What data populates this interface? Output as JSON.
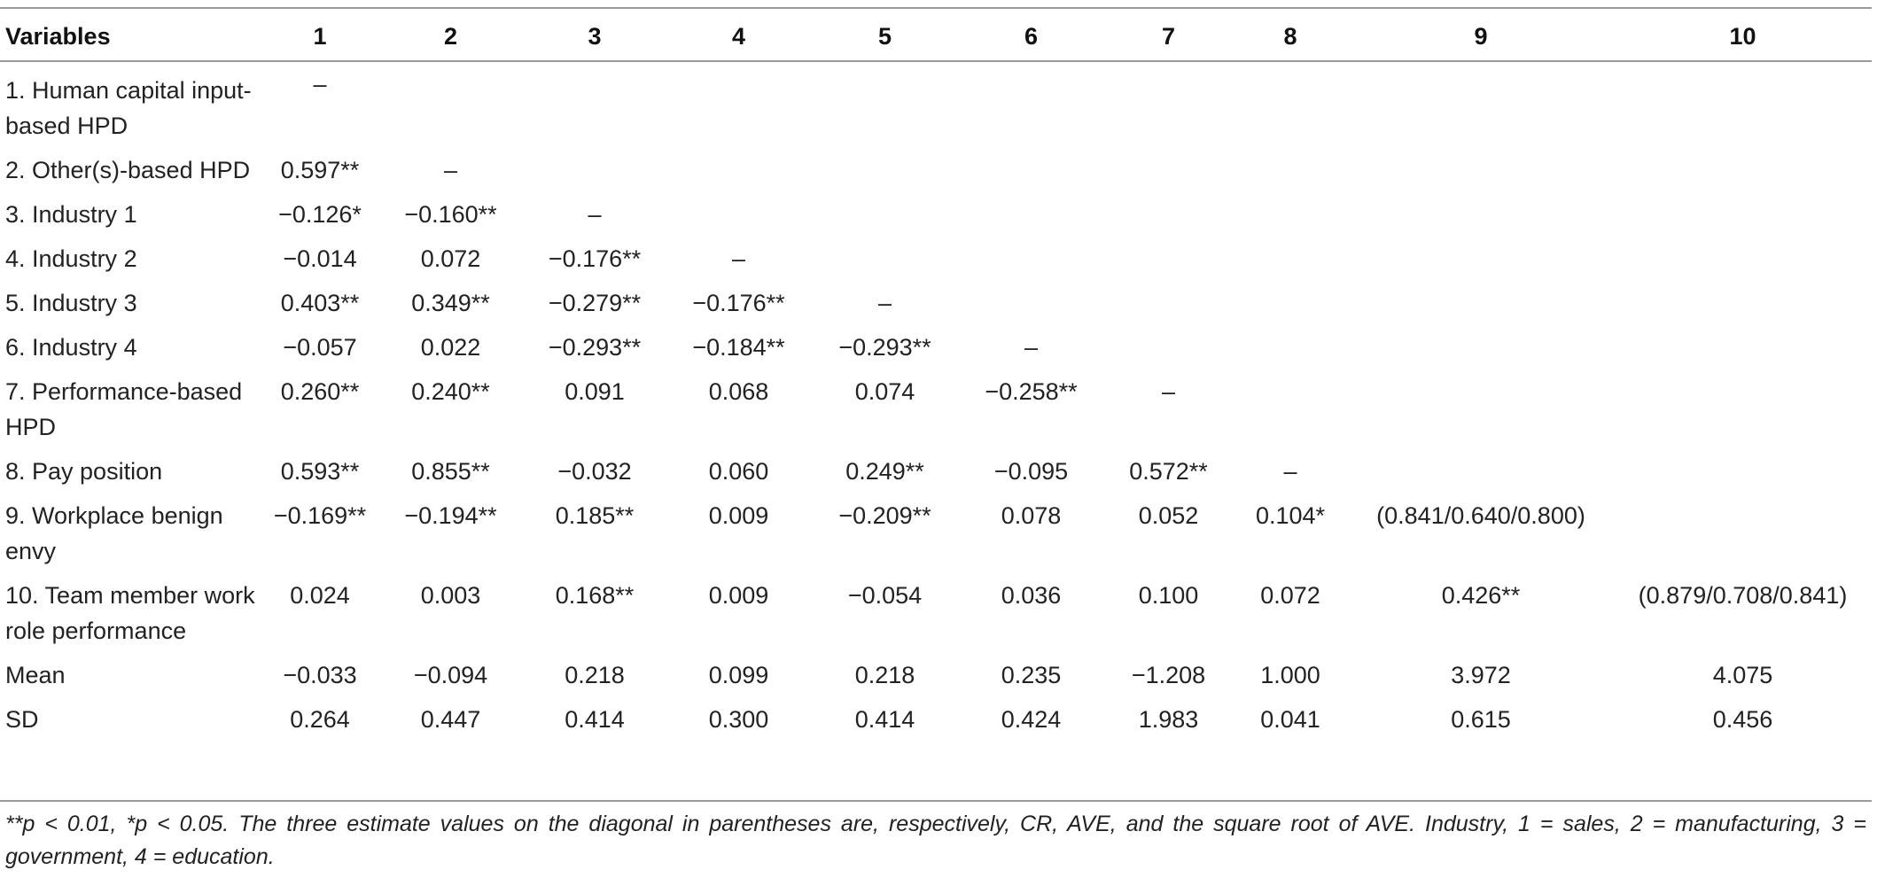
{
  "table": {
    "headers": [
      "Variables",
      "1",
      "2",
      "3",
      "4",
      "5",
      "6",
      "7",
      "8",
      "9",
      "10"
    ],
    "rows": [
      {
        "label": "1. Human capital input-based HPD",
        "values": [
          "–",
          "",
          "",
          "",
          "",
          "",
          "",
          "",
          "",
          ""
        ]
      },
      {
        "label": "2. Other(s)-based HPD",
        "values": [
          "0.597**",
          "–",
          "",
          "",
          "",
          "",
          "",
          "",
          "",
          ""
        ]
      },
      {
        "label": "3. Industry 1",
        "values": [
          "−0.126*",
          "−0.160**",
          "–",
          "",
          "",
          "",
          "",
          "",
          "",
          ""
        ]
      },
      {
        "label": "4. Industry 2",
        "values": [
          "−0.014",
          "0.072",
          "−0.176**",
          "–",
          "",
          "",
          "",
          "",
          "",
          ""
        ]
      },
      {
        "label": "5. Industry 3",
        "values": [
          "0.403**",
          "0.349**",
          "−0.279**",
          "−0.176**",
          "–",
          "",
          "",
          "",
          "",
          ""
        ]
      },
      {
        "label": "6. Industry 4",
        "values": [
          "−0.057",
          "0.022",
          "−0.293**",
          "−0.184**",
          "−0.293**",
          "–",
          "",
          "",
          "",
          ""
        ]
      },
      {
        "label": "7. Performance-based HPD",
        "values": [
          "0.260**",
          "0.240**",
          "0.091",
          "0.068",
          "0.074",
          "−0.258**",
          "–",
          "",
          "",
          ""
        ]
      },
      {
        "label": "8. Pay position",
        "values": [
          "0.593**",
          "0.855**",
          "−0.032",
          "0.060",
          "0.249**",
          "−0.095",
          "0.572**",
          "–",
          "",
          ""
        ]
      },
      {
        "label": "9. Workplace benign envy",
        "values": [
          "−0.169**",
          "−0.194**",
          "0.185**",
          "0.009",
          "−0.209**",
          "0.078",
          "0.052",
          "0.104*",
          "(0.841/0.640/0.800)",
          ""
        ]
      },
      {
        "label": "10. Team member work role performance",
        "values": [
          "0.024",
          "0.003",
          "0.168**",
          "0.009",
          "−0.054",
          "0.036",
          "0.100",
          "0.072",
          "0.426**",
          "(0.879/0.708/0.841)"
        ]
      },
      {
        "label": "Mean",
        "values": [
          "−0.033",
          "−0.094",
          "0.218",
          "0.099",
          "0.218",
          "0.235",
          "−1.208",
          "1.000",
          "3.972",
          "4.075"
        ]
      },
      {
        "label": "SD",
        "values": [
          "0.264",
          "0.447",
          "0.414",
          "0.300",
          "0.414",
          "0.424",
          "1.983",
          "0.041",
          "0.615",
          "0.456"
        ]
      }
    ]
  },
  "note": "**p < 0.01, *p < 0.05. The three estimate values on the diagonal in parentheses are, respectively, CR, AVE, and the square root of AVE. Industry, 1 = sales, 2 = manufacturing, 3 = government, 4 = education."
}
